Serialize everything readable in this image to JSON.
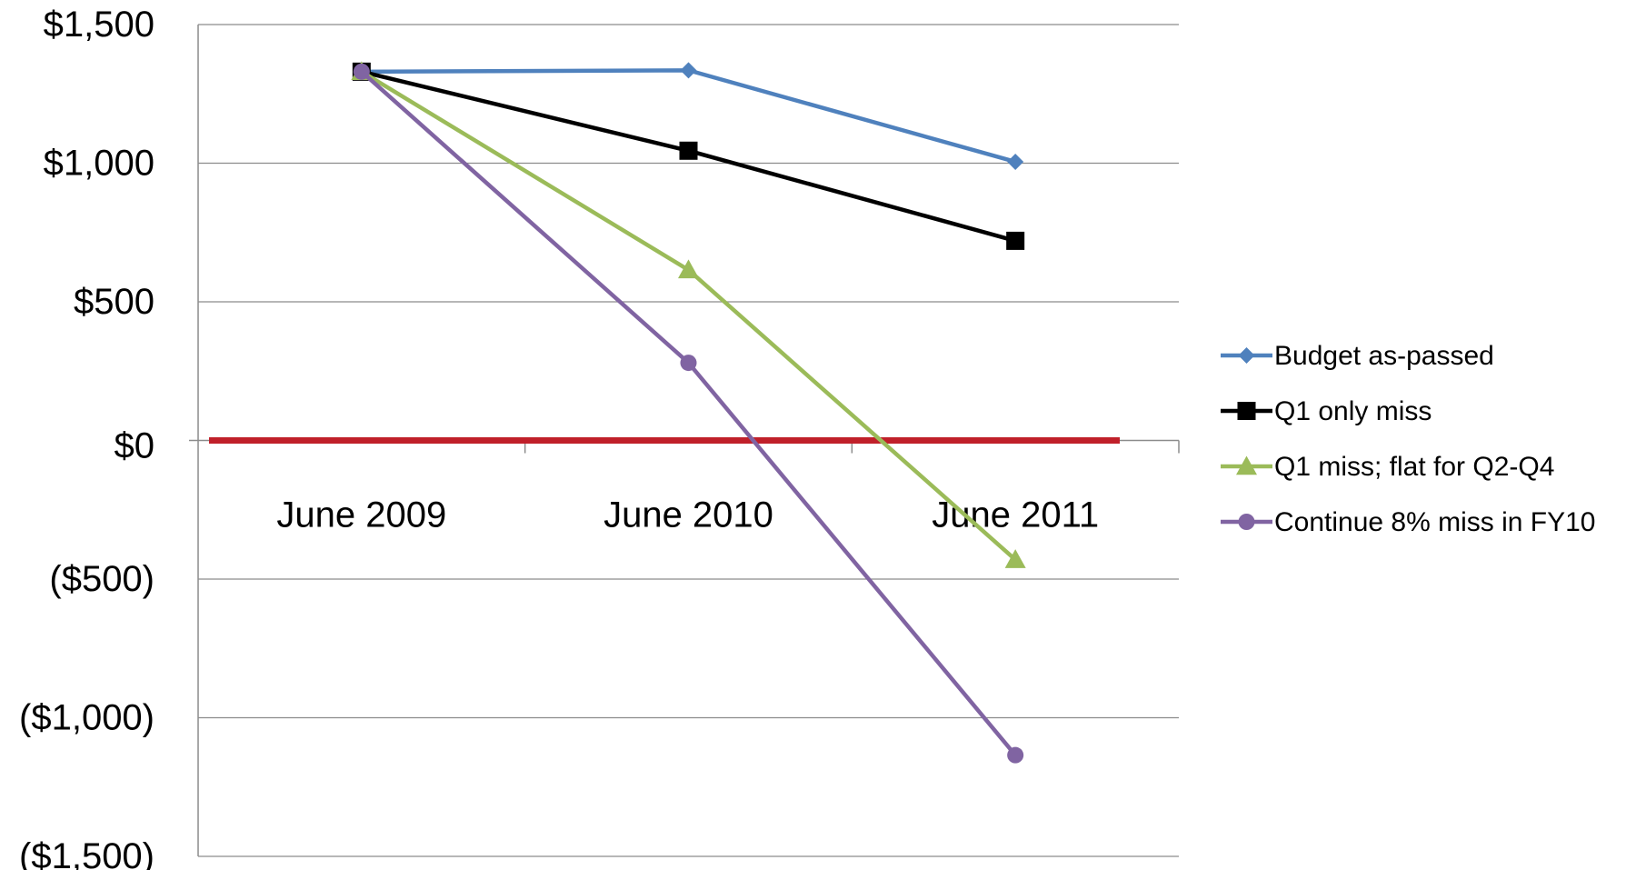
{
  "chart_data": {
    "type": "line",
    "title": "",
    "xlabel": "",
    "ylabel": "",
    "categories": [
      "June 2009",
      "June 2010",
      "June 2011"
    ],
    "ylim": [
      -1500,
      1500
    ],
    "yticks": [
      1500,
      1000,
      500,
      0,
      -500,
      -1000,
      -1500
    ],
    "ytick_labels": [
      "$1,500",
      "$1,000",
      "$500",
      "$0",
      "($500)",
      "($1,000)",
      "($1,500)"
    ],
    "grid": true,
    "legend_position": "right",
    "zero_line_color": "#c0202a",
    "zero_label_color": "#c0504d",
    "series": [
      {
        "name": "Budget as-passed",
        "values": [
          1330,
          1335,
          1005
        ],
        "color": "#4f81bd",
        "marker": "diamond"
      },
      {
        "name": "Q1 only miss",
        "values": [
          1330,
          1045,
          720
        ],
        "color": "#000000",
        "marker": "square"
      },
      {
        "name": "Q1 miss; flat for Q2-Q4",
        "values": [
          1330,
          615,
          -430
        ],
        "color": "#9bbb59",
        "marker": "triangle"
      },
      {
        "name": "Continue 8% miss in FY10",
        "values": [
          1330,
          280,
          -1135
        ],
        "color": "#8064a2",
        "marker": "circle"
      }
    ]
  }
}
